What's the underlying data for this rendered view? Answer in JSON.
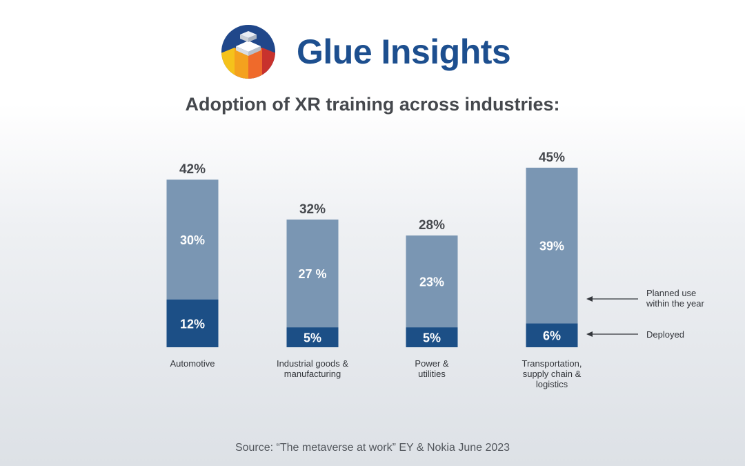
{
  "brand": {
    "name": "Glue Insights",
    "logo_icon": "cube-logo-icon"
  },
  "chart_data": {
    "type": "bar",
    "stacked": true,
    "title": "Adoption of XR training across industries:",
    "categories": [
      [
        "Automotive"
      ],
      [
        "Industrial goods &",
        "manufacturing"
      ],
      [
        "Power &",
        "utilities"
      ],
      [
        "Transportation,",
        "supply chain &",
        "logistics"
      ]
    ],
    "series": [
      {
        "name": "Deployed",
        "values": [
          12,
          5,
          5,
          6
        ],
        "labels": [
          "12%",
          "5%",
          "5%",
          "6%"
        ],
        "color": "#1c4f86"
      },
      {
        "name": "Planned use within the year",
        "legend_lines": [
          "Planned use",
          "within the year"
        ],
        "values": [
          30,
          27,
          23,
          39
        ],
        "labels": [
          "30%",
          "27 %",
          "23%",
          "39%"
        ],
        "color": "#7a96b3"
      }
    ],
    "totals": [
      42,
      32,
      28,
      45
    ],
    "total_labels": [
      "42%",
      "32%",
      "28%",
      "45%"
    ],
    "ylim": [
      0,
      45
    ],
    "grid": false,
    "legend": "right",
    "source": "Source: “The metaverse at work” EY & Nokia June 2023"
  }
}
